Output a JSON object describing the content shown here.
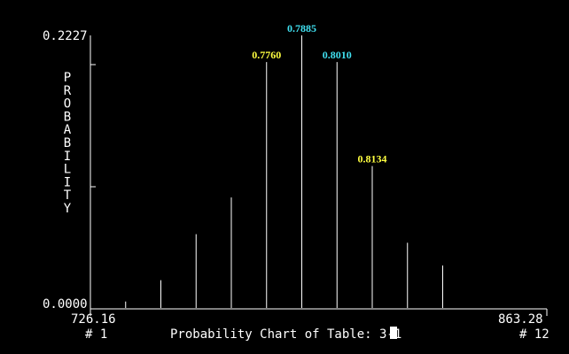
{
  "chart_data": {
    "type": "bar",
    "title": "Probability Chart of Table: 3-1",
    "ylabel": "PROBABILITY",
    "ylim": [
      0.0,
      0.2227
    ],
    "y_tick_labels": {
      "top": "0.2227",
      "bottom": "0.0000"
    },
    "x_range_labels": {
      "left": "726.16",
      "right": "863.28"
    },
    "x_index_labels": {
      "left": "# 1",
      "right": "# 12"
    },
    "values": [
      0.0,
      0.0053,
      0.0227,
      0.0603,
      0.0903,
      0.2009,
      0.2227,
      0.2009,
      0.116,
      0.0533,
      0.0347,
      0.0
    ],
    "annotations": [
      {
        "bar": 5,
        "text": "0.7760",
        "color": "#ffff40"
      },
      {
        "bar": 6,
        "text": "0.7885",
        "color": "#40e0f0"
      },
      {
        "bar": 7,
        "text": "0.8010",
        "color": "#40e0f0"
      },
      {
        "bar": 8,
        "text": "0.8134",
        "color": "#ffff40"
      }
    ],
    "grid": false,
    "colors": {
      "background": "#000000",
      "foreground": "#ffffff"
    }
  }
}
